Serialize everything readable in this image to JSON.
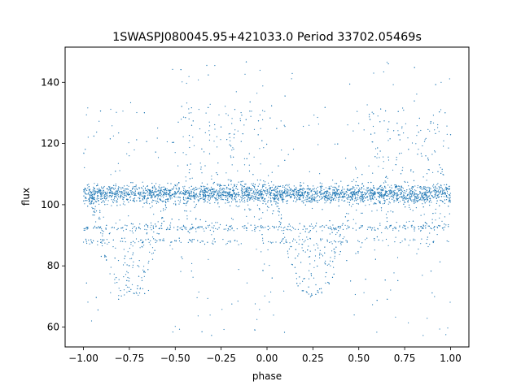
{
  "chart_data": {
    "type": "scatter",
    "title": "1SWASPJ080045.95+421033.0 Period 33702.05469s",
    "xlabel": "phase",
    "ylabel": "flux",
    "xlim": [
      -1.1,
      1.1
    ],
    "ylim": [
      53.5,
      151.5
    ],
    "x_ticks": [
      -1.0,
      -0.75,
      -0.5,
      -0.25,
      0.0,
      0.25,
      0.5,
      0.75,
      1.0
    ],
    "x_tick_labels": [
      "−1.00",
      "−0.75",
      "−0.50",
      "−0.25",
      "0.00",
      "0.25",
      "0.50",
      "0.75",
      "1.00"
    ],
    "y_ticks": [
      60,
      80,
      100,
      120,
      140
    ],
    "y_tick_labels": [
      "60",
      "80",
      "100",
      "120",
      "140"
    ],
    "grid": false,
    "legend": "none",
    "point_color": "#1f77b4",
    "series": [
      {
        "description": "phase-folded light curve, plotted over two cycles",
        "baseline_flux": 103.5,
        "baseline_spread": 2.5,
        "dip_centers_phase": [
          -0.75,
          0.25
        ],
        "dip_min_flux": 70,
        "dip_half_width_phase": 0.22,
        "secondary_level_flux": 92.5,
        "secondary_level2_flux": 88,
        "outlier_range": [
          57,
          147
        ]
      }
    ]
  }
}
